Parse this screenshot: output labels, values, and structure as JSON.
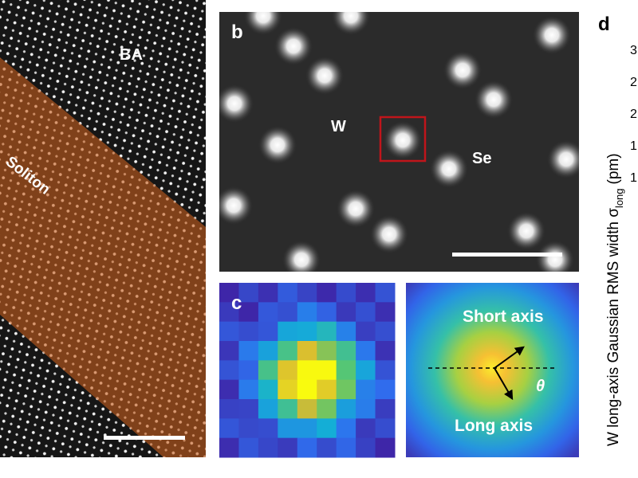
{
  "panel_a": {
    "region_top": "BA",
    "region_band": "Soliton"
  },
  "panel_b": {
    "label": "b",
    "atom_w": "W",
    "atom_se": "Se"
  },
  "panel_c": {
    "label": "c",
    "short_axis": "Short axis",
    "angle": "θ",
    "long_axis": "Long axis"
  },
  "panel_d": {
    "label": "d",
    "y_axis_label": "W long-axis Gaussian RMS width σ",
    "y_axis_subscript": "long",
    "y_axis_unit": "(pm)",
    "tick_fragments": [
      "3",
      "2",
      "2",
      "1",
      "1"
    ]
  }
}
